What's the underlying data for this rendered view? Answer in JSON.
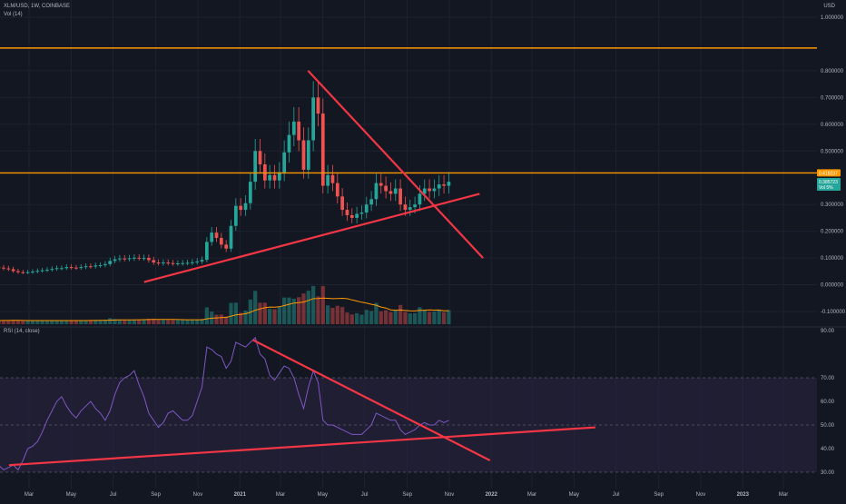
{
  "header": {
    "symbol_line": "XLM/USD, 1W, COINBASE",
    "volume_line": "Vol (14)",
    "currency": "USD",
    "rsi_line": "RSI (14, close)"
  },
  "colors": {
    "background": "#131722",
    "grid": "#1e2230",
    "up": "#26a69a",
    "down": "#ef5350",
    "orange": "#ff9800",
    "trendline": "#f23645",
    "rsi": "#7e57c2",
    "rsi_band": "#2a2340",
    "vol_ma": "#ff9800"
  },
  "chart_data": [
    {
      "type": "candlestick",
      "title": "XLM/USD, 1W, COINBASE",
      "ylim": [
        -0.12,
        1.05
      ],
      "y_ticks": [
        "1.000000",
        "0.800000",
        "0.700000",
        "0.600000",
        "0.500000",
        "0.300000",
        "0.200000",
        "0.100000",
        "0.000000",
        "-0.100000"
      ],
      "x_ticks": [
        "Mar",
        "May",
        "Jul",
        "Sep",
        "Nov",
        "2021",
        "Mar",
        "May",
        "Jul",
        "Sep",
        "Nov",
        "2022",
        "Mar",
        "May",
        "Jul",
        "Sep",
        "Nov",
        "2023",
        "Mar"
      ],
      "horizontal_lines": [
        {
          "value": 0.885,
          "label": "0.885299"
        },
        {
          "value": 0.418,
          "label": "0.418237"
        }
      ],
      "price_badges": [
        {
          "value": 0.418,
          "label": "0.418237",
          "color": "#ff9800"
        },
        {
          "value": 0.3857,
          "label": "0.385723",
          "color": "#26a69a"
        },
        {
          "value": 0.365,
          "label": "Vol 5%",
          "color": "#26a69a"
        }
      ],
      "trendlines": [
        {
          "from": [
            "2021-04-10",
            0.8
          ],
          "to": [
            "2021-12-20",
            0.1
          ]
        },
        {
          "from": [
            "2020-08-15",
            0.01
          ],
          "to": [
            "2021-12-15",
            0.34
          ]
        }
      ],
      "candles_weekly_close": [
        0.066,
        0.064,
        0.061,
        0.058,
        0.051,
        0.047,
        0.046,
        0.047,
        0.049,
        0.052,
        0.054,
        0.056,
        0.059,
        0.062,
        0.062,
        0.066,
        0.064,
        0.063,
        0.066,
        0.069,
        0.068,
        0.072,
        0.073,
        0.077,
        0.089,
        0.095,
        0.098,
        0.097,
        0.099,
        0.101,
        0.1,
        0.1,
        0.092,
        0.083,
        0.08,
        0.083,
        0.081,
        0.079,
        0.08,
        0.081,
        0.082,
        0.084,
        0.087,
        0.093,
        0.16,
        0.195,
        0.175,
        0.15,
        0.135,
        0.22,
        0.295,
        0.28,
        0.305,
        0.385,
        0.5,
        0.45,
        0.39,
        0.41,
        0.39,
        0.42,
        0.495,
        0.56,
        0.61,
        0.54,
        0.43,
        0.54,
        0.7,
        0.64,
        0.37,
        0.41,
        0.38,
        0.33,
        0.28,
        0.26,
        0.25,
        0.265,
        0.27,
        0.3,
        0.32,
        0.38,
        0.37,
        0.35,
        0.34,
        0.36,
        0.3,
        0.28,
        0.29,
        0.3,
        0.34,
        0.36,
        0.35,
        0.36,
        0.375,
        0.37,
        0.385
      ],
      "volume_note": "Volume (14) bars with moving average line"
    },
    {
      "type": "line",
      "title": "RSI (14, close)",
      "ylim": [
        30,
        90
      ],
      "y_ticks": [
        "90.00",
        "70.00",
        "60.00",
        "50.00",
        "40.00",
        "30.00"
      ],
      "band": [
        30,
        70
      ],
      "series": [
        {
          "name": "RSI",
          "values": [
            36,
            33,
            31,
            32,
            33,
            31,
            35,
            40,
            41,
            43,
            47,
            52,
            56,
            60,
            62,
            58,
            55,
            53,
            56,
            58,
            60,
            57,
            55,
            52,
            56,
            63,
            68,
            70,
            71,
            73,
            67,
            62,
            55,
            52,
            49,
            51,
            55,
            56,
            54,
            52,
            52,
            54,
            60,
            66,
            83,
            82,
            80,
            79,
            74,
            77,
            85,
            84,
            83,
            85,
            87,
            80,
            78,
            71,
            69,
            72,
            75,
            74,
            70,
            63,
            57,
            66,
            73,
            68,
            52,
            50,
            50,
            49,
            48,
            47,
            46,
            46,
            46,
            48,
            50,
            55,
            54,
            53,
            52,
            52,
            48,
            46,
            47,
            48,
            50,
            51,
            50,
            50,
            52,
            51,
            52
          ]
        }
      ],
      "trendlines": [
        {
          "from": [
            "2021-01-20",
            86
          ],
          "to": [
            "2021-12-30",
            35
          ]
        },
        {
          "from": [
            "2020-02-01",
            33
          ],
          "to": [
            "2022-06-01",
            49
          ]
        }
      ]
    }
  ]
}
